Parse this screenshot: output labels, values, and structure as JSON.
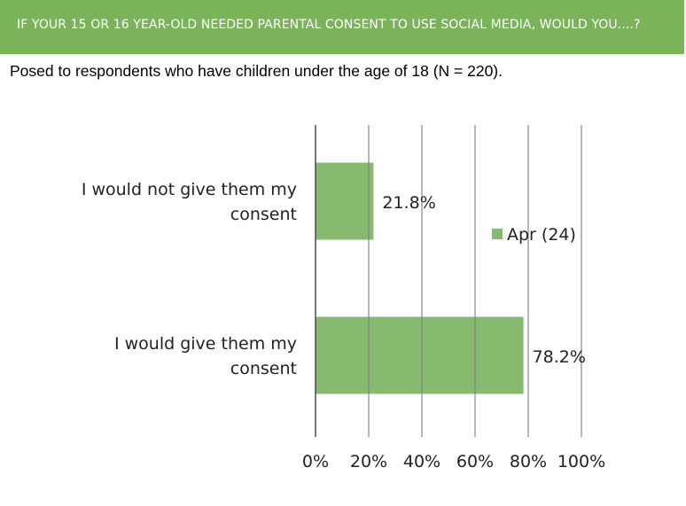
{
  "header": {
    "title": "IF YOUR 15 OR 16 YEAR-OLD NEEDED PARENTAL CONSENT TO USE SOCIAL MEDIA, WOULD YOU....?",
    "subtitle": "Posed to respondents who have children under the age of 18 (N = 220)."
  },
  "colors": {
    "banner": "#7ab35a",
    "bar": "#86bb6f",
    "grid": "#7f7f7f"
  },
  "chart_data": {
    "type": "bar",
    "orientation": "horizontal",
    "categories": [
      [
        "I would not give them my",
        "consent"
      ],
      [
        "I would give them my",
        "consent"
      ]
    ],
    "series": [
      {
        "name": "Apr (24)",
        "values": [
          21.8,
          78.2
        ]
      }
    ],
    "data_labels": [
      "21.8%",
      "78.2%"
    ],
    "xlim": [
      0,
      100
    ],
    "xticks": [
      0,
      20,
      40,
      60,
      80,
      100
    ],
    "xtick_labels": [
      "0%",
      "20%",
      "40%",
      "60%",
      "80%",
      "100%"
    ],
    "grid": true,
    "legend_position": "right"
  }
}
